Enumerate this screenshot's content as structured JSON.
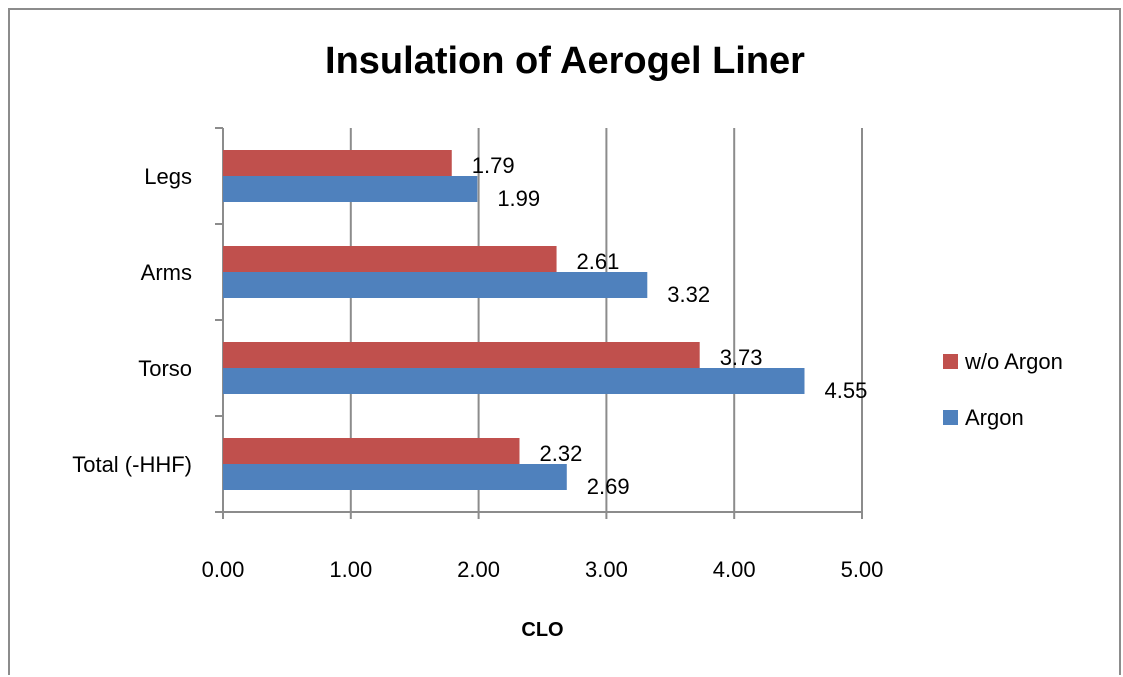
{
  "chart_data": {
    "type": "bar",
    "orientation": "horizontal",
    "title": "Insulation of Aerogel Liner",
    "xlabel": "CLO",
    "ylabel": "",
    "xlim": [
      0,
      5
    ],
    "x_ticks": [
      "0.00",
      "1.00",
      "2.00",
      "3.00",
      "4.00",
      "5.00"
    ],
    "categories": [
      "Legs",
      "Arms",
      "Torso",
      "Total (-HHF)"
    ],
    "series": [
      {
        "name": "w/o Argon",
        "color": "#C0504D",
        "values": [
          1.79,
          2.61,
          3.73,
          2.32
        ],
        "labels": [
          "1.79",
          "2.61",
          "3.73",
          "2.32"
        ]
      },
      {
        "name": "Argon",
        "color": "#4F81BD",
        "values": [
          1.99,
          3.32,
          4.55,
          2.69
        ],
        "labels": [
          "1.99",
          "3.32",
          "4.55",
          "2.69"
        ]
      }
    ],
    "grid": true,
    "legend_position": "right"
  }
}
